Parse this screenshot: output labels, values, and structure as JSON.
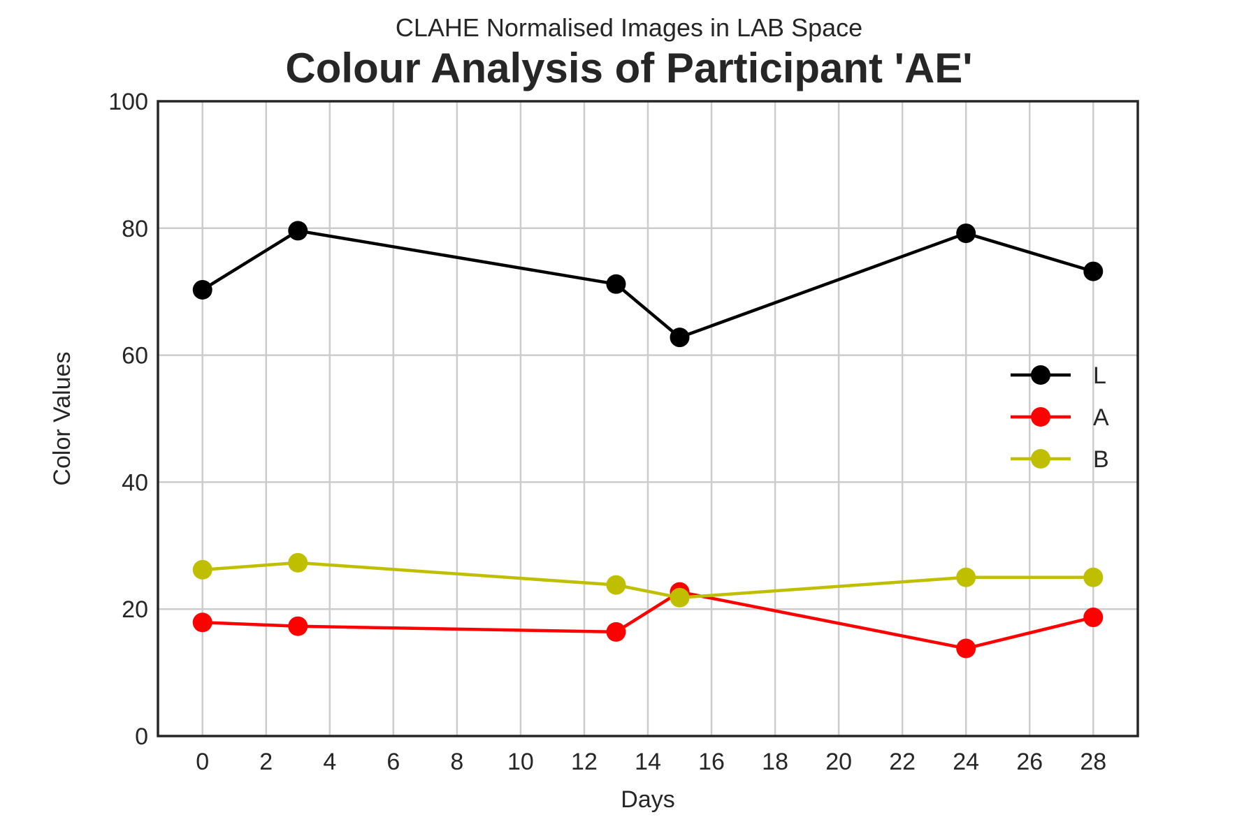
{
  "chart_data": {
    "type": "line",
    "subtitle": "CLAHE Normalised Images in LAB Space",
    "title": "Colour Analysis of Participant 'AE'",
    "xlabel": "Days",
    "ylabel": "Color Values",
    "x": [
      0,
      3,
      13,
      15,
      24,
      28
    ],
    "xlim": [
      -1.4,
      29.4
    ],
    "ylim": [
      0,
      100
    ],
    "xticks": [
      0,
      2,
      4,
      6,
      8,
      10,
      12,
      14,
      16,
      18,
      20,
      22,
      24,
      26,
      28
    ],
    "yticks": [
      0,
      20,
      40,
      60,
      80,
      100
    ],
    "grid": true,
    "legend_position": "right",
    "series": [
      {
        "name": "L",
        "color": "#000000",
        "values": [
          70.3,
          79.6,
          71.2,
          62.8,
          79.2,
          73.2
        ]
      },
      {
        "name": "A",
        "color": "#ff0000",
        "values": [
          17.9,
          17.3,
          16.4,
          22.7,
          13.8,
          18.7
        ]
      },
      {
        "name": "B",
        "color": "#bfbf00",
        "values": [
          26.2,
          27.3,
          23.8,
          21.8,
          25.0,
          25.0
        ]
      }
    ]
  }
}
